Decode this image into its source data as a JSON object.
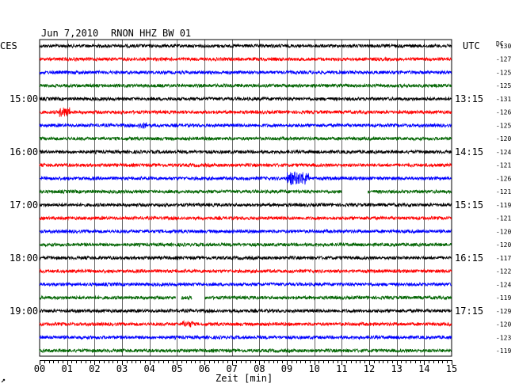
{
  "header": {
    "date": "Jun 7,2010",
    "station": "RNON HHZ BW 01",
    "left_zone": "CES",
    "right_zone": "UTC",
    "dc_label": "DC"
  },
  "chart_data": {
    "type": "line",
    "title": "Jun 7,2010  RNON HHZ BW 01",
    "xlabel": "Zeit [min]",
    "x_ticks": [
      "00",
      "01",
      "02",
      "03",
      "04",
      "05",
      "06",
      "07",
      "08",
      "09",
      "10",
      "11",
      "12",
      "13",
      "14",
      "15"
    ],
    "xlim": [
      0,
      15
    ],
    "colors": [
      "#000000",
      "#ff0000",
      "#0000ff",
      "#006400"
    ],
    "grid": true,
    "local_hour_labels": [
      "15:00",
      "16:00",
      "17:00",
      "18:00",
      "19:00"
    ],
    "utc_hour_labels": [
      "13:15",
      "14:15",
      "15:15",
      "16:15",
      "17:15"
    ],
    "dc_offsets": [
      "-130",
      "-127",
      "-125",
      "-125",
      "-131",
      "-126",
      "-125",
      "-120",
      "-124",
      "-121",
      "-126",
      "-121",
      "-119",
      "-121",
      "-120",
      "-120",
      "-117",
      "-122",
      "-124",
      "-119",
      "-129",
      "-120",
      "-123",
      "-119"
    ]
  }
}
